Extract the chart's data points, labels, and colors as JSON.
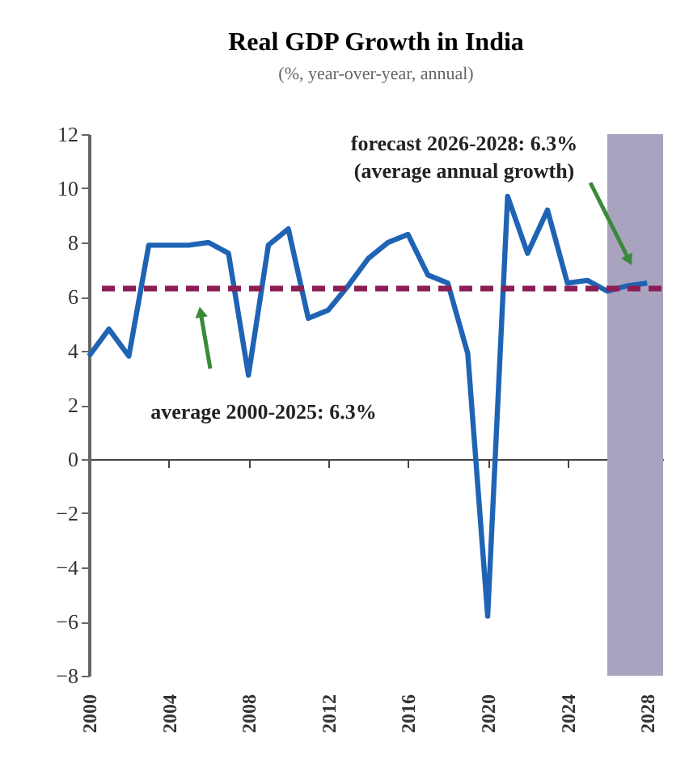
{
  "chart_data": {
    "type": "line",
    "title": "Real GDP Growth in India",
    "subtitle": "(%, year-over-year, annual)",
    "x": [
      2000,
      2001,
      2002,
      2003,
      2004,
      2005,
      2006,
      2007,
      2008,
      2009,
      2010,
      2011,
      2012,
      2013,
      2014,
      2015,
      2016,
      2017,
      2018,
      2019,
      2020,
      2021,
      2022,
      2023,
      2024,
      2025,
      2026,
      2027,
      2028
    ],
    "series": [
      {
        "color": "#1f64b4",
        "values": [
          3.8,
          4.8,
          3.8,
          7.9,
          7.9,
          7.9,
          8.0,
          7.6,
          3.1,
          7.9,
          8.5,
          5.2,
          5.5,
          6.4,
          7.4,
          8.0,
          8.3,
          6.8,
          6.5,
          3.9,
          -5.8,
          9.7,
          7.6,
          9.2,
          6.5,
          6.6,
          6.2,
          6.4,
          6.5
        ]
      }
    ],
    "xlim": [
      2000,
      2028.8
    ],
    "xticks": [
      2000,
      2004,
      2008,
      2012,
      2016,
      2020,
      2024,
      2028
    ],
    "ylim": [
      -8,
      12
    ],
    "yticks": [
      -8,
      -6,
      -4,
      -2,
      0,
      2,
      4,
      6,
      8,
      10,
      12
    ],
    "ref_lines": [
      {
        "axis": "y",
        "value": 6.3,
        "color": "#8b1f55",
        "line_style": "dashed"
      }
    ],
    "bands": [
      {
        "axis": "x",
        "from": 2026,
        "to": 2028.8,
        "color": "#aaa3c0"
      }
    ],
    "annotations": [
      "forecast 2026-2028: 6.3%\n(average annual growth)",
      "average 2000-2025: 6.3%"
    ],
    "marker": "none",
    "line_style": "solid"
  }
}
